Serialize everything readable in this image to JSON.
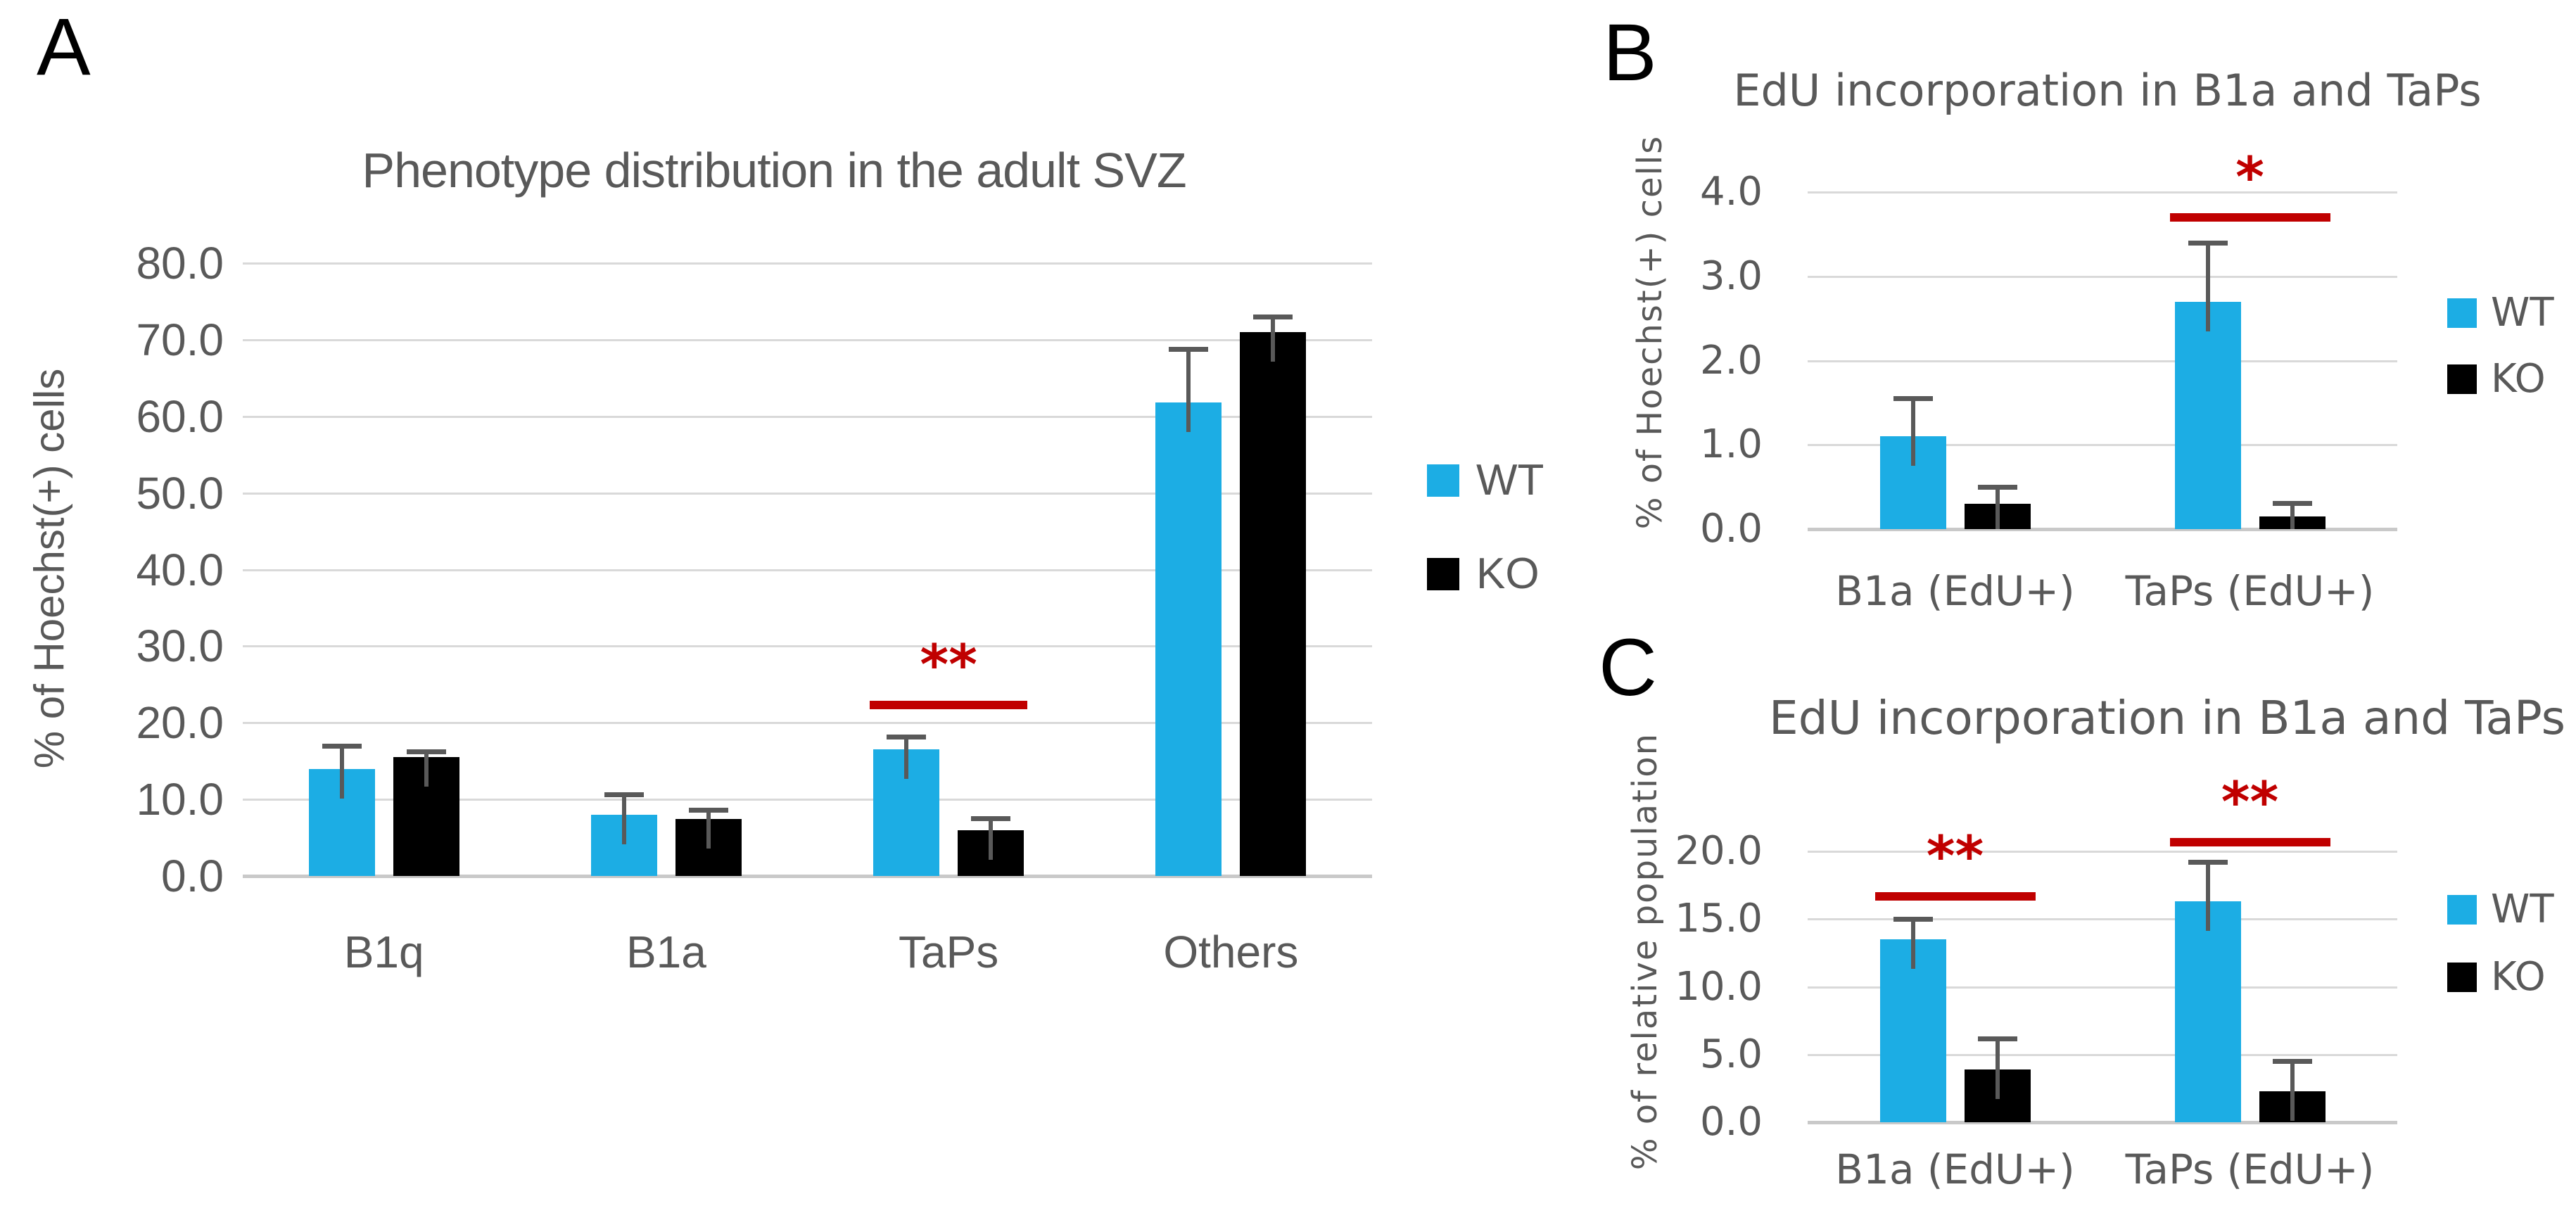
{
  "figure": {
    "background": "#FFFFFF",
    "legend_labels": [
      "WT",
      "KO"
    ]
  },
  "colors": {
    "wt": "#1CADE4",
    "ko": "#000000",
    "significance": "#C00000",
    "text": "#595959",
    "grid": "#D9D9D9",
    "baseline": "#C9C9C9",
    "error_bar": "#595959",
    "background": "#FFFFFF"
  },
  "chart_data": [
    {
      "panel_label": "A",
      "type": "bar",
      "title": "Phenotype distribution in the adult SVZ",
      "xlabel": "",
      "ylabel": "% of Hoechst(+) cells",
      "ylim": [
        0,
        80
      ],
      "ytick_step": 10,
      "yticks": [
        "0.0",
        "10.0",
        "20.0",
        "30.0",
        "40.0",
        "50.0",
        "60.0",
        "70.0",
        "80.0"
      ],
      "grid": true,
      "legend_position": "right",
      "categories": [
        "B1q",
        "B1a",
        "TaPs",
        "Others"
      ],
      "series": [
        {
          "name": "WT",
          "color": "#1CADE4",
          "values": [
            14.0,
            8.0,
            16.5,
            61.8
          ],
          "errors_plus": [
            3.0,
            2.7,
            1.7,
            7.0
          ]
        },
        {
          "name": "KO",
          "color": "#000000",
          "values": [
            15.5,
            7.4,
            6.0,
            71.0
          ],
          "errors_plus": [
            0.8,
            1.2,
            1.5,
            2.0
          ]
        }
      ],
      "significance": [
        {
          "category": "TaPs",
          "category_index": 2,
          "symbol": "**",
          "line_value": 22.3
        }
      ]
    },
    {
      "panel_label": "B",
      "type": "bar",
      "title": "EdU incorporation in B1a and TaPs",
      "xlabel": "",
      "ylabel": "% of Hoechst(+) cells",
      "ylim": [
        0,
        4
      ],
      "ytick_step": 1,
      "yticks": [
        "0.0",
        "1.0",
        "2.0",
        "3.0",
        "4.0"
      ],
      "grid": true,
      "legend_position": "right",
      "categories": [
        "B1a (EdU+)",
        "TaPs (EdU+)"
      ],
      "series": [
        {
          "name": "WT",
          "color": "#1CADE4",
          "values": [
            1.1,
            2.7
          ],
          "errors_plus": [
            0.45,
            0.7
          ]
        },
        {
          "name": "KO",
          "color": "#000000",
          "values": [
            0.3,
            0.15
          ],
          "errors_plus": [
            0.2,
            0.16
          ]
        }
      ],
      "significance": [
        {
          "category": "TaPs (EdU+)",
          "category_index": 1,
          "symbol": "*",
          "line_value": 3.7
        }
      ]
    },
    {
      "panel_label": "C",
      "type": "bar",
      "title": "EdU incorporation in B1a and TaPs",
      "xlabel": "",
      "ylabel": "% of relative population",
      "ylim": [
        0,
        20
      ],
      "ytick_step": 5,
      "yticks": [
        "0.0",
        "5.0",
        "10.0",
        "15.0",
        "20.0"
      ],
      "grid": true,
      "legend_position": "right",
      "categories": [
        "B1a (EdU+)",
        "TaPs (EdU+)"
      ],
      "series": [
        {
          "name": "WT",
          "color": "#1CADE4",
          "values": [
            13.5,
            16.3
          ],
          "errors_plus": [
            1.5,
            2.9
          ]
        },
        {
          "name": "KO",
          "color": "#000000",
          "values": [
            3.9,
            2.3
          ],
          "errors_plus": [
            2.3,
            2.2
          ]
        }
      ],
      "significance": [
        {
          "category": "B1a (EdU+)",
          "category_index": 0,
          "symbol": "**",
          "line_value": 16.7
        },
        {
          "category": "TaPs (EdU+)",
          "category_index": 1,
          "symbol": "**",
          "line_value": 20.7
        }
      ]
    }
  ]
}
